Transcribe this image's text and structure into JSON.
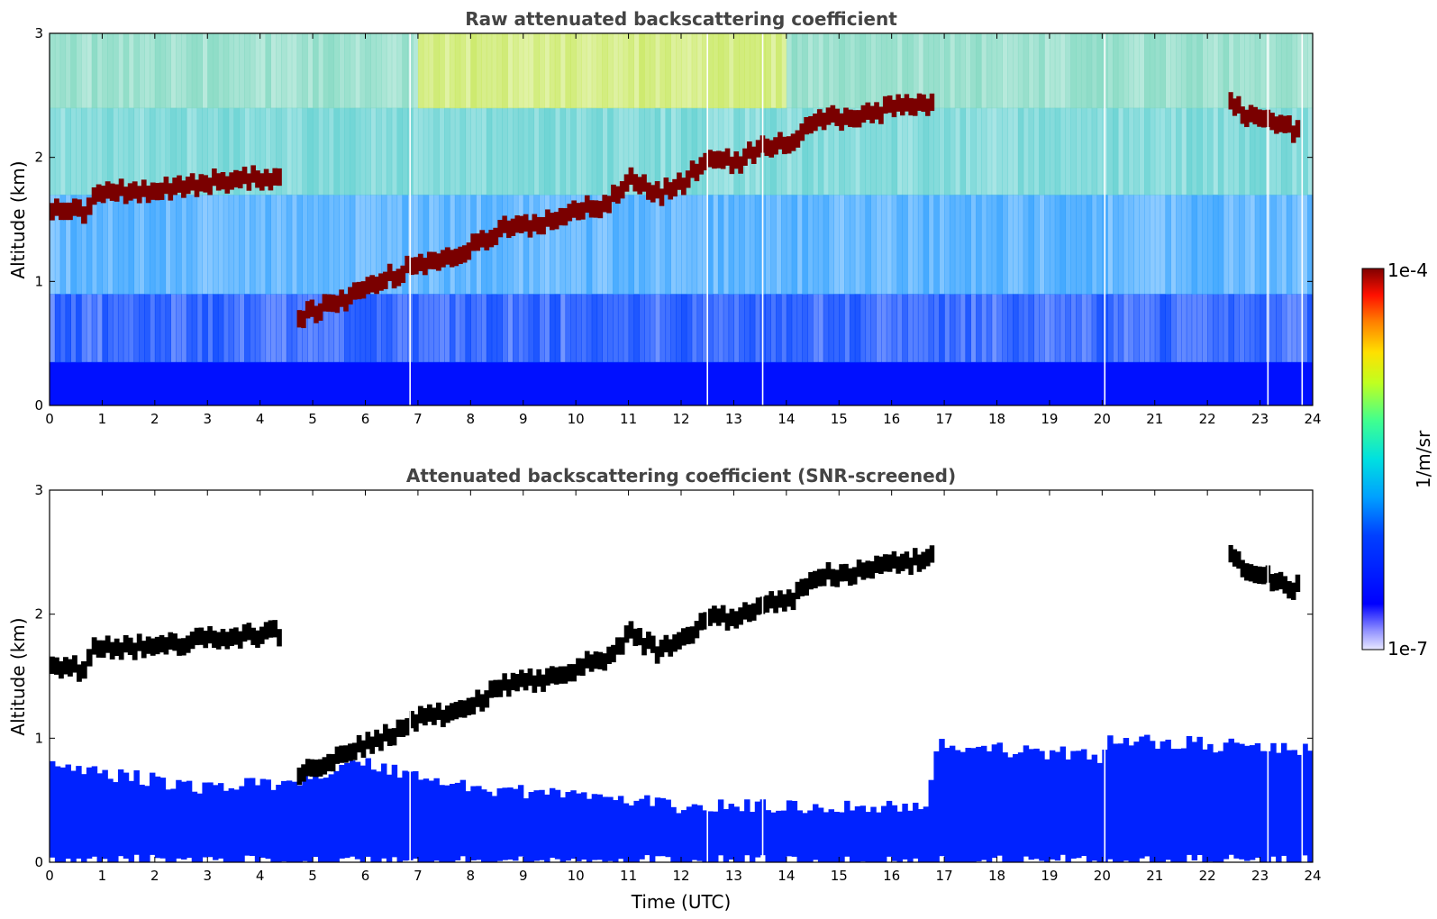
{
  "chart_data": [
    {
      "type": "heatmap",
      "title": "Raw attenuated backscattering coefficient",
      "xlabel": "",
      "ylabel": "Altitude (km)",
      "xlim": [
        0,
        24
      ],
      "ylim": [
        0,
        3
      ],
      "xticks": [
        "0",
        "1",
        "2",
        "3",
        "4",
        "5",
        "6",
        "7",
        "8",
        "9",
        "10",
        "11",
        "12",
        "13",
        "14",
        "15",
        "16",
        "17",
        "18",
        "19",
        "20",
        "21",
        "22",
        "23",
        "24"
      ],
      "yticks": [
        "0",
        "1",
        "2",
        "3"
      ],
      "screened": false,
      "layer_trace": [
        {
          "t": 0.0,
          "alt": 1.6
        },
        {
          "t": 0.6,
          "alt": 1.55
        },
        {
          "t": 0.8,
          "alt": 1.72
        },
        {
          "t": 2.0,
          "alt": 1.74
        },
        {
          "t": 3.0,
          "alt": 1.8
        },
        {
          "t": 4.4,
          "alt": 1.85
        },
        {
          "t": 4.7,
          "alt": 0.72
        },
        {
          "t": 5.5,
          "alt": 0.85
        },
        {
          "t": 6.0,
          "alt": 0.95
        },
        {
          "t": 6.5,
          "alt": 1.05
        },
        {
          "t": 7.0,
          "alt": 1.15
        },
        {
          "t": 7.6,
          "alt": 1.2
        },
        {
          "t": 8.0,
          "alt": 1.28
        },
        {
          "t": 8.6,
          "alt": 1.42
        },
        {
          "t": 9.0,
          "alt": 1.45
        },
        {
          "t": 9.5,
          "alt": 1.5
        },
        {
          "t": 10.0,
          "alt": 1.58
        },
        {
          "t": 10.5,
          "alt": 1.62
        },
        {
          "t": 11.0,
          "alt": 1.85
        },
        {
          "t": 11.5,
          "alt": 1.7
        },
        {
          "t": 12.0,
          "alt": 1.8
        },
        {
          "t": 12.5,
          "alt": 2.0
        },
        {
          "t": 13.0,
          "alt": 1.95
        },
        {
          "t": 13.5,
          "alt": 2.1
        },
        {
          "t": 14.0,
          "alt": 2.1
        },
        {
          "t": 14.5,
          "alt": 2.3
        },
        {
          "t": 15.0,
          "alt": 2.32
        },
        {
          "t": 15.5,
          "alt": 2.35
        },
        {
          "t": 16.0,
          "alt": 2.4
        },
        {
          "t": 16.8,
          "alt": 2.45
        },
        {
          "t": 22.4,
          "alt": 2.45
        },
        {
          "t": 22.7,
          "alt": 2.35
        },
        {
          "t": 23.75,
          "alt": 2.2
        }
      ],
      "gaps_utc": [
        6.85,
        12.5,
        13.55,
        20.05,
        23.15,
        23.8
      ]
    },
    {
      "type": "heatmap",
      "title": "Attenuated backscattering coefficient (SNR-screened)",
      "xlabel": "Time (UTC)",
      "ylabel": "Altitude (km)",
      "xlim": [
        0,
        24
      ],
      "ylim": [
        0,
        3
      ],
      "xticks": [
        "0",
        "1",
        "2",
        "3",
        "4",
        "5",
        "6",
        "7",
        "8",
        "9",
        "10",
        "11",
        "12",
        "13",
        "14",
        "15",
        "16",
        "17",
        "18",
        "19",
        "20",
        "21",
        "22",
        "23",
        "24"
      ],
      "yticks": [
        "0",
        "1",
        "2",
        "3"
      ],
      "screened": true,
      "boundary_layer_top_km": [
        {
          "t": 0,
          "alt": 0.78
        },
        {
          "t": 3,
          "alt": 0.6
        },
        {
          "t": 4.5,
          "alt": 0.65
        },
        {
          "t": 6,
          "alt": 0.8
        },
        {
          "t": 8,
          "alt": 0.6
        },
        {
          "t": 10,
          "alt": 0.55
        },
        {
          "t": 12,
          "alt": 0.45
        },
        {
          "t": 14,
          "alt": 0.45
        },
        {
          "t": 16.7,
          "alt": 0.45
        },
        {
          "t": 16.8,
          "alt": 0.95
        },
        {
          "t": 20,
          "alt": 0.85
        },
        {
          "t": 20.1,
          "alt": 1.0
        },
        {
          "t": 23.8,
          "alt": 0.9
        },
        {
          "t": 24,
          "alt": 0.9
        }
      ],
      "gaps_utc": [
        6.85,
        12.5,
        13.55,
        20.05,
        23.15,
        23.8
      ]
    }
  ],
  "colorbar": {
    "label": "1/m/sr",
    "max_label": "1e-4",
    "min_label": "1e-7",
    "colormap": "jet",
    "scale": "log"
  },
  "colors": {
    "cloud": "#7a0000",
    "cloud_core": "#000000",
    "boundary_layer": "#0022ff"
  }
}
